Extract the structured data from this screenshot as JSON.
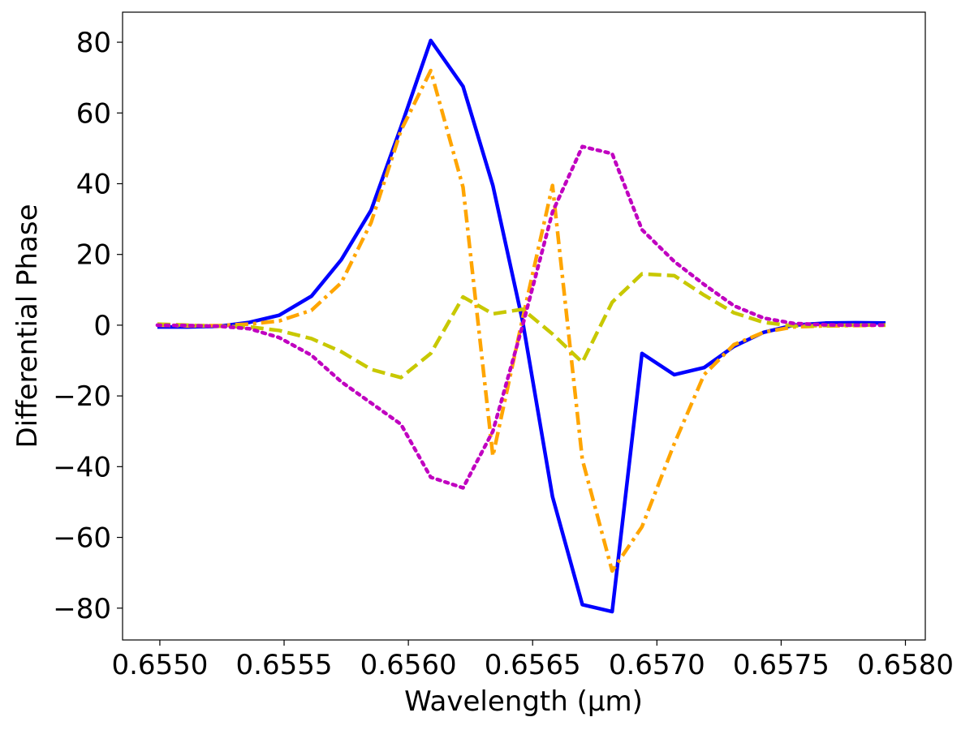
{
  "chart_data": {
    "type": "line",
    "title": "",
    "xlabel": "Wavelength (μm)",
    "ylabel": "Differential Phase",
    "xlim": [
      0.65485,
      0.65808
    ],
    "ylim": [
      -89,
      88.5
    ],
    "grid": false,
    "legend": "none",
    "x_ticks": [
      0.655,
      0.6555,
      0.656,
      0.6565,
      0.657,
      0.6575,
      0.658
    ],
    "x_tick_labels": [
      "0.6550",
      "0.6555",
      "0.6560",
      "0.6565",
      "0.6570",
      "0.6575",
      "0.6580"
    ],
    "y_ticks": [
      -80,
      -60,
      -40,
      -20,
      0,
      20,
      40,
      60,
      80
    ],
    "y_tick_labels": [
      "−80",
      "−60",
      "−40",
      "−20",
      "0",
      "20",
      "40",
      "60",
      "80"
    ],
    "series": [
      {
        "color": "#0000ff",
        "style": "solid",
        "x": [
          0.65499,
          0.65511,
          0.65524,
          0.65536,
          0.65548,
          0.65561,
          0.65573,
          0.65585,
          0.65597,
          0.65609,
          0.65622,
          0.65634,
          0.65646,
          0.65658,
          0.6567,
          0.65682,
          0.65694,
          0.65707,
          0.65719,
          0.65731,
          0.65743,
          0.65755,
          0.65768,
          0.6578,
          0.65792
        ],
        "y": [
          -0.5,
          -0.5,
          -0.3,
          0.8,
          2.8,
          8.2,
          18.5,
          32.5,
          56.0,
          80.5,
          67.5,
          39.5,
          1.0,
          -48.5,
          -79.0,
          -81.0,
          -8.0,
          -14.0,
          -12.0,
          -6.0,
          -2.0,
          0.0,
          0.6,
          0.7,
          0.6
        ]
      },
      {
        "color": "#ffa500",
        "style": "dashdot",
        "x": [
          0.65499,
          0.65511,
          0.65524,
          0.65536,
          0.65548,
          0.65561,
          0.65573,
          0.65585,
          0.65597,
          0.65609,
          0.65622,
          0.65634,
          0.65646,
          0.65658,
          0.6567,
          0.65682,
          0.65694,
          0.65707,
          0.65719,
          0.65731,
          0.65743,
          0.65755,
          0.65768,
          0.6578,
          0.65792
        ],
        "y": [
          0.0,
          -0.2,
          -0.1,
          0.3,
          1.2,
          4.2,
          12.0,
          29.0,
          55.0,
          72.0,
          39.0,
          -37.0,
          2.0,
          39.5,
          -38.0,
          -69.5,
          -57.0,
          -33.5,
          -14.0,
          -5.5,
          -2.0,
          -0.5,
          -0.2,
          -0.1,
          0.0
        ]
      },
      {
        "color": "#c8c800",
        "style": "dashed",
        "x": [
          0.65499,
          0.65511,
          0.65524,
          0.65536,
          0.65548,
          0.65561,
          0.65573,
          0.65585,
          0.65597,
          0.65609,
          0.65622,
          0.65634,
          0.65646,
          0.65658,
          0.6567,
          0.65682,
          0.65694,
          0.65707,
          0.65719,
          0.65731,
          0.65743,
          0.65755,
          0.65768,
          0.6578,
          0.65792
        ],
        "y": [
          0.3,
          0.0,
          -0.3,
          -0.5,
          -1.5,
          -3.8,
          -7.5,
          -12.5,
          -14.8,
          -8.0,
          8.0,
          3.2,
          4.5,
          -2.5,
          -10.5,
          6.5,
          14.5,
          14.0,
          8.5,
          3.5,
          0.8,
          -0.2,
          -0.1,
          0.0,
          0.0
        ]
      },
      {
        "color": "#c000c0",
        "style": "dotted",
        "x": [
          0.65499,
          0.65511,
          0.65524,
          0.65536,
          0.65548,
          0.65561,
          0.65573,
          0.65585,
          0.65597,
          0.65609,
          0.65622,
          0.65634,
          0.65646,
          0.65658,
          0.6567,
          0.65682,
          0.65694,
          0.65707,
          0.65719,
          0.65731,
          0.65743,
          0.65755,
          0.65768,
          0.6578,
          0.65792
        ],
        "y": [
          0.0,
          -0.1,
          -0.3,
          -1.0,
          -3.5,
          -8.5,
          -16.0,
          -22.0,
          -28.0,
          -43.0,
          -46.0,
          -30.0,
          0.0,
          32.0,
          50.5,
          48.5,
          27.0,
          18.0,
          11.5,
          5.5,
          2.0,
          0.5,
          0.1,
          0.0,
          0.0
        ]
      }
    ]
  }
}
